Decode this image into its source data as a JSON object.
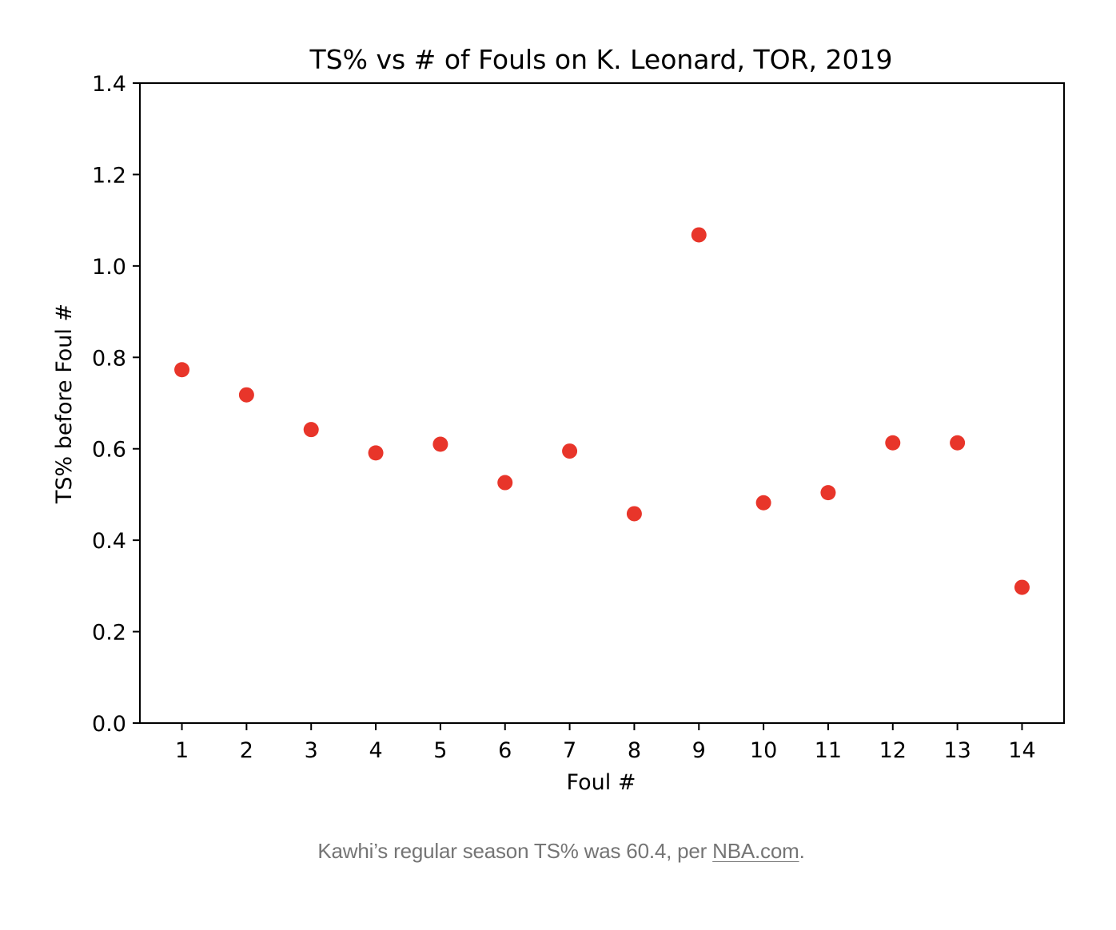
{
  "chart_data": {
    "type": "scatter",
    "title": "TS% vs # of Fouls on K. Leonard, TOR, 2019",
    "xlabel": "Foul #",
    "ylabel": "TS% before Foul #",
    "xlim": [
      0.35,
      14.65
    ],
    "ylim": [
      0.0,
      1.4
    ],
    "x_ticks": [
      1,
      2,
      3,
      4,
      5,
      6,
      7,
      8,
      9,
      10,
      11,
      12,
      13,
      14
    ],
    "y_ticks": [
      "0.0",
      "0.2",
      "0.4",
      "0.6",
      "0.8",
      "1.0",
      "1.2",
      "1.4"
    ],
    "grid": false,
    "marker_color": "#e8352a",
    "series": [
      {
        "x": [
          1,
          2,
          3,
          4,
          5,
          6,
          7,
          8,
          9,
          10,
          11,
          12,
          13,
          14
        ],
        "y": [
          0.773,
          0.718,
          0.642,
          0.591,
          0.61,
          0.526,
          0.595,
          0.458,
          1.068,
          0.482,
          0.504,
          0.613,
          0.613,
          0.297
        ]
      }
    ]
  },
  "caption": {
    "text_before": "Kawhi’s regular season TS% was 60.4, per ",
    "link_text": "NBA.com",
    "text_after": "."
  }
}
